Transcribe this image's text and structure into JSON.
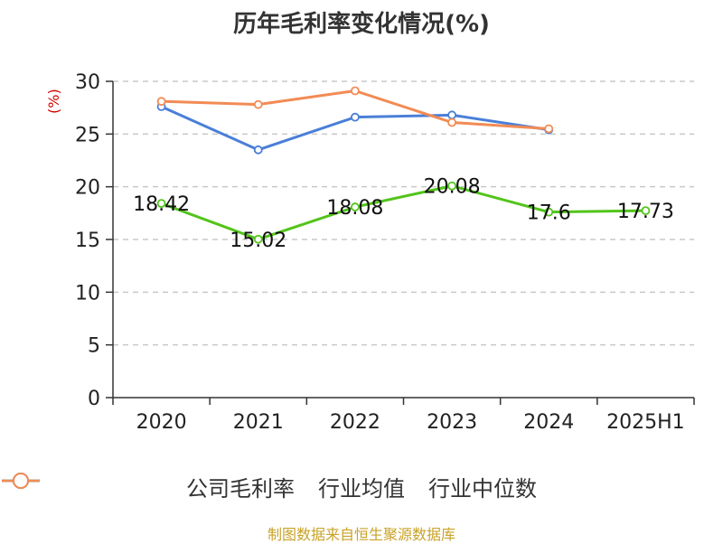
{
  "chart_data": {
    "type": "line",
    "title": "历年毛利率变化情况(%)",
    "ylabel": "(%)",
    "categories": [
      "2020",
      "2021",
      "2022",
      "2023",
      "2024",
      "2025H1"
    ],
    "ylim": [
      0,
      30
    ],
    "yticks": [
      0,
      5,
      10,
      15,
      20,
      25,
      30
    ],
    "grid": true,
    "legend_position": "bottom",
    "series": [
      {
        "name": "公司毛利率",
        "color": "#52c41a",
        "values": [
          18.42,
          15.02,
          18.08,
          20.08,
          17.6,
          17.73
        ],
        "labels": [
          "18.42",
          "15.02",
          "18.08",
          "20.08",
          "17.6",
          "17.73"
        ]
      },
      {
        "name": "行业均值",
        "color": "#4a7fd8",
        "values": [
          27.6,
          23.5,
          26.6,
          26.8,
          25.4,
          null
        ]
      },
      {
        "name": "行业中位数",
        "color": "#f28b54",
        "values": [
          28.1,
          27.8,
          29.1,
          26.1,
          25.5,
          null
        ]
      }
    ]
  },
  "source": "制图数据来自恒生聚源数据库"
}
